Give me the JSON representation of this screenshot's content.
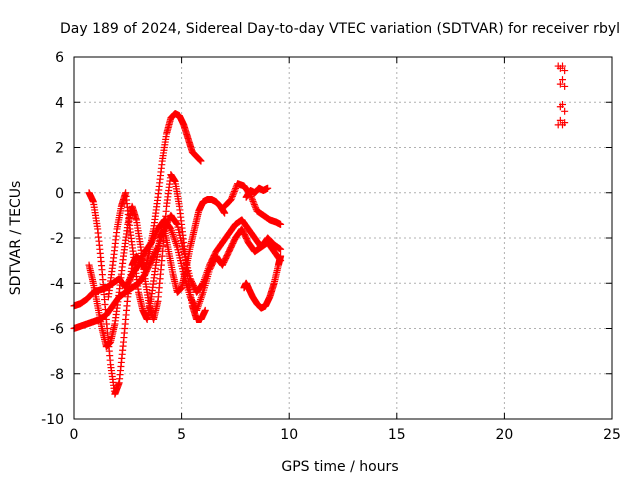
{
  "chart_data": {
    "type": "scatter",
    "title": "Day 189 of 2024, Sidereal Day-to-day VTEC variation (SDTVAR) for receiver rbyl",
    "xlabel": "GPS time / hours",
    "ylabel": "SDTVAR / TECUs",
    "xlim": [
      0,
      25
    ],
    "ylim": [
      -10,
      6
    ],
    "x_ticks": [
      0,
      5,
      10,
      15,
      20,
      25
    ],
    "y_ticks": [
      -10,
      -8,
      -6,
      -4,
      -2,
      0,
      2,
      4,
      6
    ],
    "x_tick_labels": [
      "0",
      "5",
      "10",
      "15",
      "20",
      "25"
    ],
    "y_tick_labels": [
      "-10",
      "-8",
      "-6",
      "-4",
      "-2",
      "0",
      "2",
      "4",
      "6"
    ],
    "grid": true,
    "marker": "plus",
    "color": "#ff0000",
    "series": [
      {
        "x": [
          0.0,
          0.3,
          0.6,
          0.9,
          1.2,
          1.5,
          1.8,
          2.1,
          2.4,
          2.7,
          3.0,
          3.3,
          3.6,
          3.9,
          4.2,
          4.5,
          4.8,
          5.1,
          5.4,
          5.7,
          6.0,
          6.3,
          6.6,
          6.9,
          7.2,
          7.5,
          7.8,
          8.1,
          8.4,
          8.7,
          9.0,
          9.3,
          9.6
        ],
        "y": [
          -5.0,
          -4.9,
          -4.7,
          -4.4,
          -4.3,
          -4.2,
          -4.0,
          -3.8,
          -4.2,
          -3.6,
          -3.2,
          -2.6,
          -2.2,
          -1.6,
          -1.2,
          -1.6,
          -2.4,
          -3.6,
          -4.6,
          -5.2,
          -4.4,
          -3.4,
          -2.8,
          -3.2,
          -2.6,
          -2.0,
          -1.6,
          -2.2,
          -2.6,
          -2.4,
          -2.0,
          -2.3,
          -2.5
        ]
      },
      {
        "x": [
          0.0,
          0.3,
          0.6,
          0.9,
          1.2,
          1.5,
          1.8,
          2.1,
          2.4,
          2.7,
          3.0,
          3.3,
          3.6,
          3.9,
          4.2,
          4.5,
          4.8,
          5.1,
          5.4,
          5.7,
          6.0,
          6.3,
          6.6,
          6.9,
          7.2,
          7.5,
          7.8,
          8.1,
          8.4,
          8.7,
          9.0,
          9.3,
          9.6
        ],
        "y": [
          -6.0,
          -5.9,
          -5.8,
          -5.7,
          -5.6,
          -5.4,
          -5.0,
          -4.6,
          -4.4,
          -4.2,
          -4.0,
          -3.6,
          -3.0,
          -2.4,
          -1.6,
          -1.0,
          -1.4,
          -2.6,
          -3.8,
          -4.4,
          -4.0,
          -3.2,
          -2.6,
          -2.2,
          -1.8,
          -1.4,
          -1.2,
          -1.6,
          -2.0,
          -2.4,
          -2.2,
          -2.6,
          -3.0
        ]
      },
      {
        "x": [
          0.7,
          0.9,
          1.1,
          1.3,
          1.5,
          1.7,
          1.9,
          2.1,
          2.3,
          2.5,
          2.7,
          2.9,
          3.1,
          3.3,
          3.5,
          3.7,
          3.9,
          4.1,
          4.3,
          4.5,
          4.7,
          4.9,
          5.1,
          5.3,
          5.5,
          5.7,
          5.9
        ],
        "y": [
          0.0,
          -0.4,
          -1.6,
          -3.4,
          -5.6,
          -7.6,
          -8.9,
          -8.4,
          -6.6,
          -4.6,
          -3.2,
          -2.8,
          -3.0,
          -3.4,
          -2.6,
          -1.6,
          -0.2,
          1.4,
          2.6,
          3.3,
          3.5,
          3.4,
          3.0,
          2.4,
          1.8,
          1.6,
          1.4
        ]
      },
      {
        "x": [
          0.7,
          0.9,
          1.1,
          1.3,
          1.5,
          1.7,
          1.9,
          2.1,
          2.3,
          2.5,
          2.7,
          2.9,
          3.1,
          3.3,
          3.5,
          3.7,
          3.9,
          4.1,
          4.3,
          4.5,
          4.7,
          4.9,
          5.1,
          5.3,
          5.5,
          5.7,
          5.9,
          6.1
        ],
        "y": [
          -3.2,
          -4.0,
          -5.0,
          -6.0,
          -6.8,
          -6.6,
          -5.8,
          -4.4,
          -2.8,
          -1.4,
          -0.6,
          -1.2,
          -2.4,
          -3.8,
          -5.0,
          -5.6,
          -4.8,
          -2.8,
          -0.6,
          0.8,
          0.5,
          -0.6,
          -2.2,
          -3.8,
          -5.0,
          -5.6,
          -5.6,
          -5.2
        ]
      },
      {
        "x": [
          1.6,
          1.8,
          2.0,
          2.2,
          2.4,
          2.6,
          2.8,
          3.0,
          3.2,
          3.4,
          3.6,
          3.8,
          4.0,
          4.2,
          4.4,
          4.6,
          4.8,
          5.0,
          5.2,
          5.4,
          5.6,
          5.8,
          6.0,
          6.2,
          6.4,
          6.6,
          6.8,
          7.0
        ],
        "y": [
          -4.6,
          -3.2,
          -1.6,
          -0.6,
          0.0,
          -1.6,
          -3.0,
          -4.4,
          -5.2,
          -5.6,
          -4.6,
          -3.2,
          -2.0,
          -1.6,
          -2.6,
          -3.6,
          -4.4,
          -4.2,
          -3.4,
          -2.4,
          -1.6,
          -0.8,
          -0.4,
          -0.3,
          -0.3,
          -0.4,
          -0.6,
          -0.9
        ]
      },
      {
        "x": [
          7.0,
          7.3,
          7.6,
          7.9,
          8.2,
          8.5,
          8.8,
          9.1,
          9.4,
          9.6
        ],
        "y": [
          -0.6,
          -0.3,
          0.4,
          0.3,
          -0.1,
          -0.8,
          -1.0,
          -1.2,
          -1.3,
          -1.4
        ]
      },
      {
        "x": [
          7.9,
          8.0,
          8.1,
          8.3,
          8.5,
          8.7,
          8.9,
          9.1,
          9.3,
          9.5,
          9.6
        ],
        "y": [
          -4.2,
          -4.0,
          -4.2,
          -4.6,
          -4.9,
          -5.1,
          -5.0,
          -4.6,
          -4.0,
          -3.2,
          -2.8
        ]
      },
      {
        "x": [
          8.0,
          8.2,
          8.4,
          8.6,
          8.8,
          9.0
        ],
        "y": [
          -0.2,
          0.1,
          0.0,
          0.2,
          0.1,
          0.2
        ]
      },
      {
        "x": [
          22.5,
          22.6,
          22.7,
          22.8,
          22.6,
          22.7,
          22.8,
          22.5,
          22.6,
          22.7,
          22.8,
          22.6,
          22.7,
          22.8
        ],
        "y": [
          5.6,
          5.5,
          5.6,
          5.4,
          4.8,
          5.0,
          4.7,
          3.0,
          3.2,
          3.0,
          3.1,
          3.8,
          3.9,
          3.6
        ]
      }
    ]
  }
}
